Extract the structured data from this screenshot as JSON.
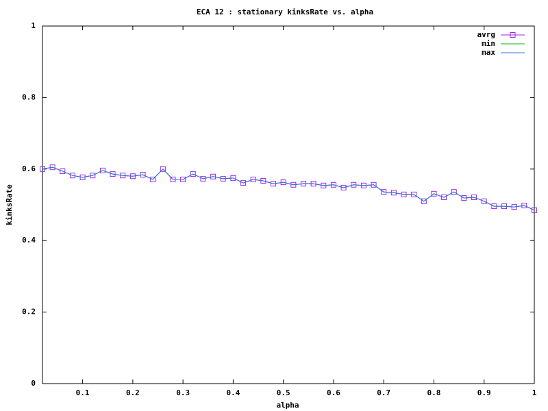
{
  "chart_data": {
    "type": "line",
    "title": "ECA 12 : stationary kinksRate vs. alpha",
    "x_label": "alpha",
    "y_label": "kinksRate",
    "x": [
      0.02,
      0.04,
      0.06,
      0.08,
      0.1,
      0.12,
      0.14,
      0.16,
      0.18,
      0.2,
      0.22,
      0.24,
      0.26,
      0.28,
      0.3,
      0.32,
      0.34,
      0.36,
      0.38,
      0.4,
      0.42,
      0.44,
      0.46,
      0.48,
      0.5,
      0.52,
      0.54,
      0.56,
      0.58,
      0.6,
      0.62,
      0.64,
      0.66,
      0.68,
      0.7,
      0.72,
      0.74,
      0.76,
      0.78,
      0.8,
      0.82,
      0.84,
      0.86,
      0.88,
      0.9,
      0.92,
      0.94,
      0.96,
      0.98,
      1
    ],
    "series": [
      {
        "name": "avrg",
        "color": "#a020f0",
        "marker": "square",
        "values": [
          0.6,
          0.605,
          0.594,
          0.582,
          0.577,
          0.582,
          0.596,
          0.586,
          0.582,
          0.58,
          0.584,
          0.571,
          0.6,
          0.571,
          0.571,
          0.586,
          0.573,
          0.579,
          0.573,
          0.575,
          0.561,
          0.571,
          0.567,
          0.559,
          0.563,
          0.556,
          0.559,
          0.559,
          0.554,
          0.556,
          0.548,
          0.556,
          0.554,
          0.556,
          0.536,
          0.534,
          0.529,
          0.529,
          0.51,
          0.531,
          0.521,
          0.536,
          0.519,
          0.521,
          0.51,
          0.496,
          0.496,
          0.494,
          0.498,
          0.485
        ]
      },
      {
        "name": "min",
        "color": "#00b000",
        "values": [
          0.6,
          0.605,
          0.594,
          0.582,
          0.577,
          0.582,
          0.596,
          0.586,
          0.582,
          0.58,
          0.584,
          0.571,
          0.6,
          0.571,
          0.571,
          0.586,
          0.573,
          0.579,
          0.573,
          0.575,
          0.561,
          0.571,
          0.567,
          0.559,
          0.563,
          0.556,
          0.559,
          0.559,
          0.554,
          0.556,
          0.548,
          0.556,
          0.554,
          0.556,
          0.536,
          0.534,
          0.529,
          0.529,
          0.51,
          0.531,
          0.521,
          0.536,
          0.519,
          0.521,
          0.51,
          0.496,
          0.496,
          0.494,
          0.498,
          0.485
        ]
      },
      {
        "name": "max",
        "color": "#3070e0",
        "values": [
          0.6,
          0.605,
          0.594,
          0.582,
          0.577,
          0.582,
          0.596,
          0.586,
          0.582,
          0.58,
          0.584,
          0.571,
          0.6,
          0.571,
          0.571,
          0.586,
          0.573,
          0.579,
          0.573,
          0.575,
          0.561,
          0.571,
          0.567,
          0.559,
          0.563,
          0.556,
          0.559,
          0.559,
          0.554,
          0.556,
          0.548,
          0.556,
          0.554,
          0.556,
          0.536,
          0.534,
          0.529,
          0.529,
          0.51,
          0.531,
          0.521,
          0.536,
          0.519,
          0.521,
          0.51,
          0.496,
          0.496,
          0.494,
          0.498,
          0.485
        ]
      }
    ],
    "xlim": [
      0.02,
      1
    ],
    "xticks": [
      0.1,
      0.2,
      0.3,
      0.4,
      0.5,
      0.6,
      0.7,
      0.8,
      0.9,
      1
    ],
    "ylim": [
      0,
      1
    ],
    "yticks": [
      0,
      0.2,
      0.4,
      0.6,
      0.8,
      1
    ],
    "grid": false,
    "legend": "top-right"
  }
}
